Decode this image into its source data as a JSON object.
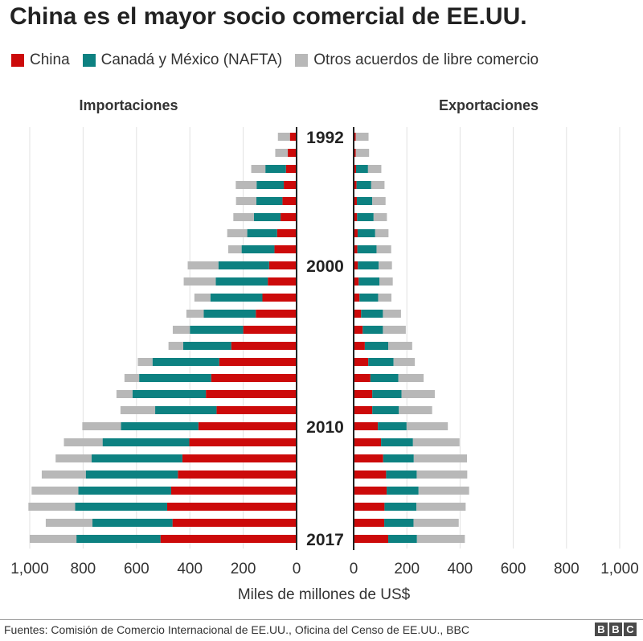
{
  "title": "China es el mayor socio comercial de EE.UU.",
  "legend": [
    {
      "label": "China",
      "color": "#cc0a0a"
    },
    {
      "label": "Canadá y México (NAFTA)",
      "color": "#0d8181"
    },
    {
      "label": "Otros acuerdos de libre comercio",
      "color": "#b8b8b8"
    }
  ],
  "source": "Fuentes: Comisión de Comercio Internacional de EE.UU., Oficina del Censo de EE.UU., BBC",
  "logo": [
    "B",
    "B",
    "C"
  ],
  "chart_data": {
    "type": "bar",
    "orientation": "horizontal-stacked-butterfly",
    "years": [
      1992,
      1993,
      1994,
      1995,
      1996,
      1997,
      1998,
      1999,
      2000,
      2001,
      2002,
      2003,
      2004,
      2005,
      2006,
      2007,
      2008,
      2009,
      2010,
      2011,
      2012,
      2013,
      2014,
      2015,
      2016,
      2017
    ],
    "year_labels": [
      "1992",
      "2000",
      "2010",
      "2017"
    ],
    "xlabel": "Miles de millones de US$",
    "xlim": [
      0,
      1000
    ],
    "ticks": [
      "1,000",
      "800",
      "600",
      "400",
      "200",
      "0"
    ],
    "ticks_right": [
      "0",
      "200",
      "400",
      "600",
      "800",
      "1,000"
    ],
    "grid": true,
    "imports": {
      "label": "Importaciones",
      "series": [
        {
          "name": "China",
          "color": "#cc0a0a",
          "values": [
            25,
            33,
            40,
            48,
            53,
            60,
            73,
            83,
            103,
            108,
            128,
            153,
            200,
            245,
            290,
            320,
            340,
            300,
            368,
            402,
            428,
            445,
            470,
            485,
            465,
            510
          ]
        },
        {
          "name": "Canadá y México (NAFTA)",
          "color": "#0d8181",
          "values": [
            0,
            0,
            77,
            102,
            98,
            100,
            112,
            123,
            190,
            195,
            195,
            195,
            200,
            180,
            250,
            270,
            275,
            230,
            290,
            325,
            340,
            345,
            348,
            345,
            300,
            315
          ]
        },
        {
          "name": "Otros acuerdos de libre comercio",
          "color": "#b8b8b8",
          "values": [
            45,
            47,
            53,
            78,
            76,
            77,
            75,
            50,
            115,
            120,
            60,
            65,
            64,
            55,
            55,
            55,
            60,
            130,
            145,
            145,
            135,
            165,
            175,
            175,
            175,
            175
          ]
        }
      ]
    },
    "exports": {
      "label": "Exportaciones",
      "series": [
        {
          "name": "China",
          "color": "#cc0a0a",
          "values": [
            8,
            8,
            9,
            11,
            12,
            13,
            15,
            14,
            16,
            19,
            22,
            28,
            34,
            42,
            55,
            63,
            70,
            70,
            91,
            103,
            111,
            122,
            124,
            116,
            115,
            130
          ]
        },
        {
          "name": "Canadá y México (NAFTA)",
          "color": "#0d8181",
          "values": [
            0,
            0,
            45,
            55,
            58,
            62,
            66,
            72,
            78,
            78,
            70,
            82,
            76,
            88,
            95,
            105,
            110,
            100,
            108,
            120,
            115,
            115,
            120,
            120,
            110,
            108
          ]
        },
        {
          "name": "Otros acuerdos de libre comercio",
          "color": "#b8b8b8",
          "values": [
            48,
            50,
            50,
            50,
            50,
            50,
            50,
            55,
            50,
            50,
            50,
            68,
            86,
            90,
            80,
            95,
            125,
            125,
            155,
            175,
            200,
            190,
            190,
            185,
            170,
            180
          ]
        }
      ]
    }
  }
}
